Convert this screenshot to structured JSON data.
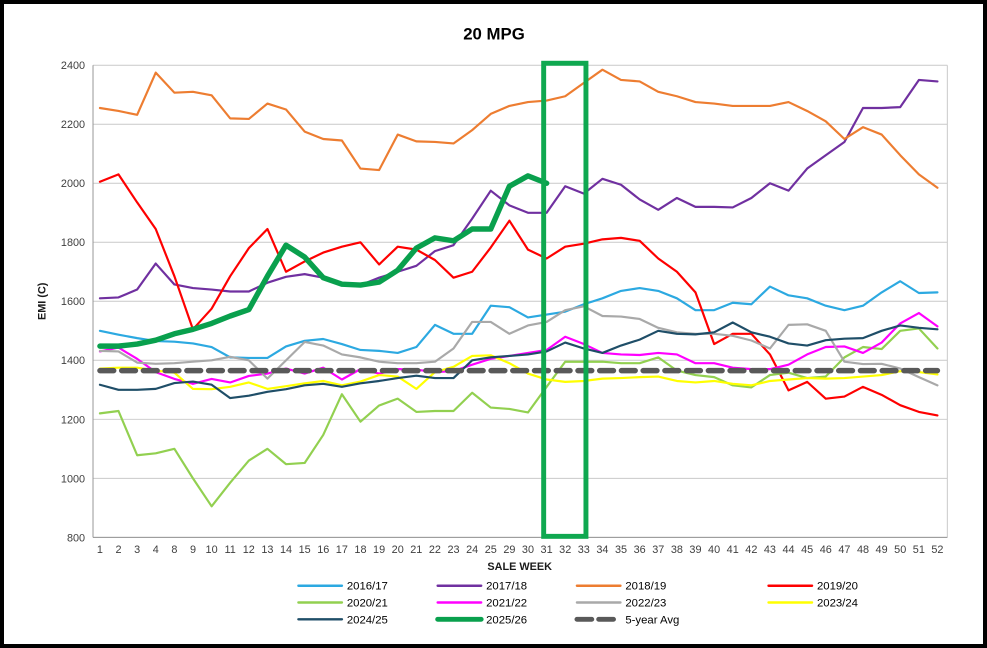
{
  "title": "20 MPG",
  "axes": {
    "x_label": "SALE WEEK",
    "y_label": "EMI (C)",
    "y_ticks": [
      800,
      1000,
      1200,
      1400,
      1600,
      1800,
      2000,
      2200,
      2400
    ]
  },
  "colors": {
    "grid": "#c9c9c9",
    "axis": "#969696",
    "tick_text": "#3f3f3f",
    "title_text": "#000000",
    "highlight": "#0fa850"
  },
  "highlight_weeks": [
    31,
    32
  ],
  "chart_data": {
    "type": "line",
    "title": "20 MPG",
    "xlabel": "SALE WEEK",
    "ylabel": "EMI (C)",
    "ylim": [
      800,
      2400
    ],
    "ytick_step": 200,
    "grid": true,
    "legend_position": "bottom",
    "categories": [
      1,
      2,
      3,
      4,
      8,
      9,
      10,
      11,
      12,
      13,
      14,
      15,
      16,
      17,
      18,
      19,
      20,
      21,
      22,
      23,
      24,
      25,
      29,
      30,
      31,
      32,
      33,
      34,
      35,
      36,
      37,
      38,
      39,
      40,
      41,
      42,
      43,
      44,
      45,
      46,
      47,
      48,
      49,
      50,
      51,
      52
    ],
    "series": [
      {
        "name": "2016/17",
        "color": "#2ca9e1",
        "width": 2.2,
        "dashed": false,
        "values": [
          1500,
          1487,
          1475,
          1465,
          1463,
          1457,
          1445,
          1410,
          1408,
          1408,
          1447,
          1466,
          1472,
          1455,
          1435,
          1432,
          1425,
          1445,
          1520,
          1490,
          1490,
          1585,
          1580,
          1545,
          1555,
          1565,
          1590,
          1610,
          1635,
          1645,
          1635,
          1610,
          1570,
          1570,
          1595,
          1590,
          1650,
          1620,
          1610,
          1585,
          1570,
          1585,
          1630,
          1668,
          1628,
          1630
        ]
      },
      {
        "name": "2017/18",
        "color": "#7030a0",
        "width": 2.2,
        "dashed": false,
        "values": [
          1610,
          1613,
          1640,
          1728,
          1657,
          1645,
          1640,
          1633,
          1633,
          1663,
          1683,
          1692,
          1680,
          1660,
          1655,
          1680,
          1700,
          1720,
          1770,
          1790,
          1880,
          1975,
          1925,
          1900,
          1900,
          1990,
          1965,
          2015,
          1995,
          1945,
          1910,
          1950,
          1920,
          1920,
          1918,
          1950,
          2000,
          1975,
          2050,
          2095,
          2140,
          2255,
          2255,
          2258,
          2350,
          2345
        ]
      },
      {
        "name": "2018/19",
        "color": "#ed7d31",
        "width": 2.2,
        "dashed": false,
        "values": [
          2255,
          2245,
          2232,
          2375,
          2307,
          2310,
          2298,
          2220,
          2218,
          2270,
          2250,
          2175,
          2150,
          2145,
          2050,
          2045,
          2165,
          2142,
          2140,
          2135,
          2180,
          2235,
          2262,
          2275,
          2280,
          2295,
          2340,
          2385,
          2350,
          2345,
          2310,
          2295,
          2275,
          2270,
          2262,
          2262,
          2262,
          2275,
          2245,
          2210,
          2150,
          2190,
          2165,
          2095,
          2030,
          1985
        ]
      },
      {
        "name": "2019/20",
        "color": "#fe0000",
        "width": 2.2,
        "dashed": false,
        "values": [
          2005,
          2030,
          1935,
          1845,
          1685,
          1505,
          1575,
          1685,
          1780,
          1845,
          1700,
          1735,
          1765,
          1785,
          1800,
          1725,
          1785,
          1775,
          1740,
          1680,
          1700,
          1782,
          1873,
          1775,
          1745,
          1785,
          1795,
          1810,
          1815,
          1805,
          1745,
          1700,
          1630,
          1455,
          1490,
          1490,
          1420,
          1298,
          1327,
          1270,
          1277,
          1310,
          1283,
          1248,
          1225,
          1213
        ]
      },
      {
        "name": "2020/21",
        "color": "#92d050",
        "width": 2.2,
        "dashed": false,
        "values": [
          1220,
          1228,
          1078,
          1085,
          1100,
          1000,
          905,
          985,
          1060,
          1100,
          1048,
          1052,
          1147,
          1285,
          1192,
          1247,
          1270,
          1225,
          1228,
          1228,
          1290,
          1240,
          1235,
          1223,
          1310,
          1395,
          1395,
          1395,
          1390,
          1390,
          1410,
          1365,
          1350,
          1343,
          1315,
          1308,
          1350,
          1358,
          1340,
          1345,
          1410,
          1445,
          1438,
          1500,
          1508,
          1440
        ]
      },
      {
        "name": "2021/22",
        "color": "#ff00ff",
        "width": 2.2,
        "dashed": false,
        "values": [
          1430,
          1443,
          1405,
          1360,
          1337,
          1320,
          1337,
          1325,
          1347,
          1355,
          1372,
          1355,
          1375,
          1335,
          1370,
          1355,
          1370,
          1368,
          1360,
          1363,
          1385,
          1405,
          1415,
          1425,
          1435,
          1480,
          1455,
          1425,
          1420,
          1418,
          1425,
          1420,
          1390,
          1390,
          1375,
          1370,
          1370,
          1385,
          1420,
          1445,
          1447,
          1425,
          1460,
          1525,
          1560,
          1515
        ]
      },
      {
        "name": "2022/23",
        "color": "#a9a9a9",
        "width": 2.2,
        "dashed": false,
        "values": [
          1432,
          1430,
          1392,
          1388,
          1390,
          1395,
          1400,
          1412,
          1400,
          1338,
          1400,
          1462,
          1450,
          1420,
          1410,
          1395,
          1390,
          1390,
          1395,
          1440,
          1530,
          1530,
          1490,
          1518,
          1530,
          1570,
          1583,
          1550,
          1548,
          1540,
          1510,
          1495,
          1490,
          1490,
          1483,
          1467,
          1440,
          1520,
          1522,
          1500,
          1395,
          1387,
          1388,
          1372,
          1343,
          1315
        ]
      },
      {
        "name": "2023/24",
        "color": "#ffff00",
        "width": 2.2,
        "dashed": false,
        "values": [
          1372,
          1375,
          1375,
          1365,
          1358,
          1303,
          1302,
          1310,
          1325,
          1303,
          1312,
          1322,
          1330,
          1315,
          1328,
          1350,
          1345,
          1303,
          1360,
          1378,
          1415,
          1417,
          1390,
          1355,
          1335,
          1327,
          1330,
          1338,
          1340,
          1343,
          1345,
          1330,
          1325,
          1330,
          1320,
          1315,
          1330,
          1335,
          1340,
          1338,
          1340,
          1345,
          1350,
          1363,
          1360,
          1352
        ]
      },
      {
        "name": "2024/25",
        "color": "#1f4e68",
        "width": 2.2,
        "dashed": false,
        "values": [
          1317,
          1300,
          1300,
          1303,
          1323,
          1328,
          1317,
          1272,
          1280,
          1293,
          1302,
          1315,
          1320,
          1310,
          1322,
          1330,
          1340,
          1348,
          1340,
          1340,
          1400,
          1410,
          1415,
          1420,
          1430,
          1460,
          1440,
          1425,
          1450,
          1470,
          1500,
          1490,
          1488,
          1495,
          1528,
          1495,
          1480,
          1457,
          1450,
          1468,
          1473,
          1475,
          1500,
          1518,
          1510,
          1505
        ]
      },
      {
        "name": "2025/26",
        "color": "#09a04d",
        "width": 5.5,
        "dashed": false,
        "values": [
          1448,
          1448,
          1455,
          1468,
          1490,
          1505,
          1525,
          1550,
          1572,
          1685,
          1790,
          1750,
          1680,
          1658,
          1655,
          1665,
          1705,
          1780,
          1815,
          1805,
          1845,
          1845,
          1990,
          2025,
          2000,
          null,
          null,
          null,
          null,
          null,
          null,
          null,
          null,
          null,
          null,
          null,
          null,
          null,
          null,
          null,
          null,
          null,
          null,
          null,
          null,
          null
        ]
      },
      {
        "name": "5-year Avg",
        "color": "#595959",
        "width": 5.5,
        "dashed": true,
        "values": [
          1365,
          1365,
          1365,
          1365,
          1365,
          1365,
          1365,
          1365,
          1365,
          1365,
          1365,
          1365,
          1365,
          1365,
          1365,
          1365,
          1365,
          1365,
          1365,
          1365,
          1365,
          1365,
          1365,
          1365,
          1365,
          1365,
          1365,
          1365,
          1365,
          1365,
          1365,
          1365,
          1365,
          1365,
          1365,
          1365,
          1365,
          1365,
          1365,
          1365,
          1365,
          1365,
          1365,
          1365,
          1365,
          1365
        ]
      }
    ],
    "annotation": {
      "type": "rect",
      "from_week": 31,
      "to_week": 32,
      "color": "#0fa850",
      "note": "vertical highlight box over weeks 31-32"
    }
  },
  "legend": {
    "rows": [
      [
        "2016/17",
        "2017/18",
        "2018/19",
        "2019/20"
      ],
      [
        "2020/21",
        "2021/22",
        "2022/23",
        "2023/24"
      ],
      [
        "2024/25",
        "2025/26",
        "5-year Avg"
      ]
    ]
  }
}
